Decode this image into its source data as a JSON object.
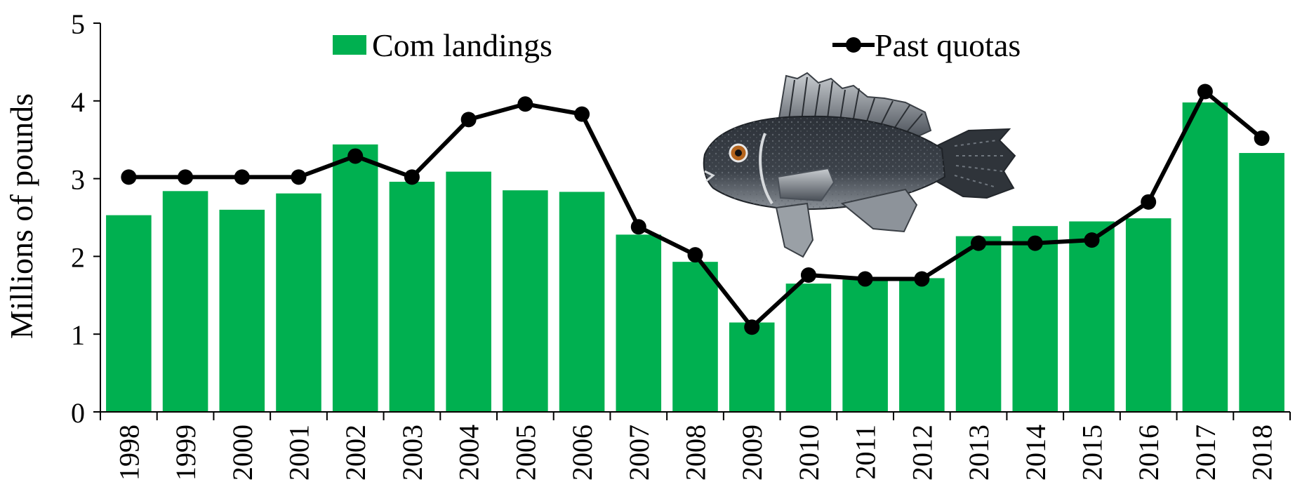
{
  "chart_data": {
    "type": "bar",
    "categories": [
      "1998",
      "1999",
      "2000",
      "2001",
      "2002",
      "2003",
      "2004",
      "2005",
      "2006",
      "2007",
      "2008",
      "2009",
      "2010",
      "2011",
      "2012",
      "2013",
      "2014",
      "2015",
      "2016",
      "2017",
      "2018"
    ],
    "series": [
      {
        "name": "Com landings",
        "type": "bar",
        "color": "#00b050",
        "values": [
          2.53,
          2.84,
          2.6,
          2.81,
          3.44,
          2.96,
          3.09,
          2.85,
          2.83,
          2.28,
          1.93,
          1.15,
          1.65,
          1.7,
          1.72,
          2.26,
          2.39,
          2.45,
          2.49,
          3.98,
          3.33
        ]
      },
      {
        "name": "Past quotas",
        "type": "line",
        "color": "#000000",
        "values": [
          3.02,
          3.02,
          3.02,
          3.02,
          3.29,
          3.02,
          3.76,
          3.96,
          3.83,
          2.38,
          2.02,
          1.09,
          1.76,
          1.71,
          1.71,
          2.17,
          2.17,
          2.21,
          2.7,
          4.12,
          3.52
        ]
      }
    ],
    "xlabel": "",
    "ylabel": "Millions of pounds",
    "ylim": [
      0,
      5
    ],
    "yticks": [
      "0",
      "1",
      "2",
      "3",
      "4",
      "5"
    ],
    "grid": false,
    "legend_position": "top",
    "illustration": "fish-illustration"
  }
}
